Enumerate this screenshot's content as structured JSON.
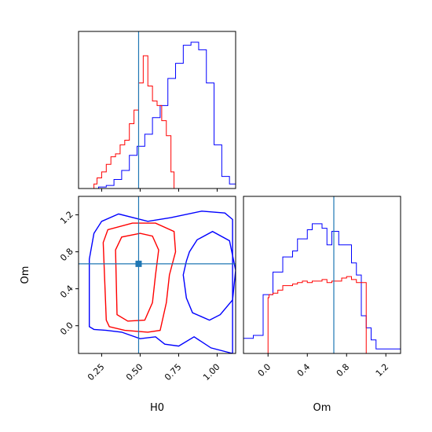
{
  "chart_data": {
    "type": "corner",
    "parameters": [
      "H0",
      "Om"
    ],
    "truth": {
      "H0": 0.49,
      "Om": 0.67
    },
    "colors": {
      "series_blue": "#0000ff",
      "series_red": "#ff0000",
      "truth": "#1f77b4"
    },
    "grid": false,
    "panels": [
      {
        "id": "H0_hist",
        "type": "histogram-step",
        "xlim": [
          0.1,
          1.12
        ],
        "series": [
          {
            "color": "#0000ff",
            "edges": [
              0.1,
              0.13,
              0.18,
              0.23,
              0.28,
              0.33,
              0.38,
              0.43,
              0.48,
              0.53,
              0.58,
              0.63,
              0.68,
              0.73,
              0.78,
              0.83,
              0.88,
              0.93,
              0.98,
              1.03,
              1.08,
              1.12
            ],
            "heights": [
              0,
              0.0,
              0.0,
              0.01,
              0.02,
              0.06,
              0.12,
              0.22,
              0.28,
              0.36,
              0.47,
              0.55,
              0.73,
              0.83,
              0.95,
              0.97,
              0.92,
              0.7,
              0.29,
              0.08,
              0.03
            ]
          },
          {
            "color": "#ff0000",
            "edges": [
              0.2,
              0.22,
              0.25,
              0.28,
              0.31,
              0.34,
              0.37,
              0.4,
              0.43,
              0.46,
              0.49,
              0.52,
              0.55,
              0.58,
              0.61,
              0.64,
              0.67,
              0.7,
              0.72
            ],
            "heights": [
              0.03,
              0.07,
              0.11,
              0.16,
              0.21,
              0.23,
              0.29,
              0.32,
              0.43,
              0.52,
              0.7,
              0.88,
              0.68,
              0.58,
              0.55,
              0.45,
              0.35,
              0.11
            ]
          }
        ]
      },
      {
        "id": "Om_hist",
        "type": "histogram-step",
        "xlim": [
          -0.25,
          1.35
        ],
        "series": [
          {
            "color": "#0000ff",
            "edges": [
              -0.25,
              -0.15,
              -0.05,
              0.05,
              0.15,
              0.25,
              0.3,
              0.4,
              0.45,
              0.55,
              0.6,
              0.65,
              0.72,
              0.78,
              0.85,
              0.9,
              0.95,
              1.0,
              1.05,
              1.1,
              1.15,
              1.35
            ],
            "heights": [
              0.1,
              0.12,
              0.39,
              0.54,
              0.64,
              0.68,
              0.76,
              0.82,
              0.86,
              0.83,
              0.72,
              0.81,
              0.72,
              0.72,
              0.6,
              0.52,
              0.25,
              0.17,
              0.09,
              0.03,
              0.03
            ]
          },
          {
            "color": "#ff0000",
            "edges": [
              0.0,
              0.01,
              0.05,
              0.1,
              0.15,
              0.2,
              0.25,
              0.3,
              0.35,
              0.4,
              0.45,
              0.5,
              0.55,
              0.6,
              0.65,
              0.7,
              0.75,
              0.8,
              0.85,
              0.9,
              0.95,
              1.0
            ],
            "heights": [
              0.37,
              0.39,
              0.4,
              0.42,
              0.45,
              0.45,
              0.46,
              0.47,
              0.48,
              0.47,
              0.48,
              0.48,
              0.49,
              0.47,
              0.48,
              0.48,
              0.5,
              0.51,
              0.49,
              0.47,
              0.47
            ]
          }
        ]
      },
      {
        "id": "H0_Om_2d",
        "type": "contour",
        "xlabel": "H0",
        "ylabel": "Om",
        "xlim": [
          0.1,
          1.12
        ],
        "ylim": [
          -0.3,
          1.4
        ],
        "xticks": [
          "0.25",
          "0.50",
          "0.75",
          "1.00"
        ],
        "xtick_values": [
          0.25,
          0.5,
          0.75,
          1.0
        ],
        "yticks": [
          "0.0",
          "0.4",
          "0.8",
          "1.2"
        ],
        "ytick_values": [
          0.0,
          0.4,
          0.8,
          1.2
        ],
        "contours": [
          {
            "color": "#0000ff",
            "level": "outer",
            "points": [
              [
                0.17,
                -0.01
              ],
              [
                0.17,
                0.72
              ],
              [
                0.2,
                1.0
              ],
              [
                0.25,
                1.13
              ],
              [
                0.36,
                1.21
              ],
              [
                0.55,
                1.13
              ],
              [
                0.7,
                1.17
              ],
              [
                0.9,
                1.24
              ],
              [
                1.05,
                1.22
              ],
              [
                1.1,
                1.15
              ],
              [
                1.1,
                -0.3
              ],
              [
                0.96,
                -0.24
              ],
              [
                0.85,
                -0.12
              ],
              [
                0.75,
                -0.22
              ],
              [
                0.66,
                -0.2
              ],
              [
                0.6,
                -0.12
              ],
              [
                0.5,
                -0.14
              ],
              [
                0.38,
                -0.07
              ],
              [
                0.28,
                -0.05
              ],
              [
                0.2,
                -0.04
              ],
              [
                0.17,
                -0.01
              ]
            ]
          },
          {
            "color": "#0000ff",
            "level": "inner",
            "points": [
              [
                0.8,
                0.7
              ],
              [
                0.78,
                0.55
              ],
              [
                0.8,
                0.3
              ],
              [
                0.84,
                0.14
              ],
              [
                0.95,
                0.06
              ],
              [
                1.02,
                0.12
              ],
              [
                1.1,
                0.28
              ],
              [
                1.12,
                0.6
              ],
              [
                1.08,
                0.92
              ],
              [
                0.97,
                1.02
              ],
              [
                0.87,
                0.93
              ],
              [
                0.82,
                0.8
              ],
              [
                0.8,
                0.7
              ]
            ]
          },
          {
            "color": "#ff0000",
            "level": "outer",
            "points": [
              [
                0.28,
                0.06
              ],
              [
                0.26,
                0.9
              ],
              [
                0.29,
                1.04
              ],
              [
                0.45,
                1.11
              ],
              [
                0.6,
                1.11
              ],
              [
                0.72,
                1.02
              ],
              [
                0.73,
                0.8
              ],
              [
                0.69,
                0.55
              ],
              [
                0.67,
                0.25
              ],
              [
                0.63,
                -0.05
              ],
              [
                0.55,
                -0.07
              ],
              [
                0.4,
                -0.05
              ],
              [
                0.3,
                -0.01
              ],
              [
                0.28,
                0.06
              ]
            ]
          },
          {
            "color": "#ff0000",
            "level": "inner",
            "points": [
              [
                0.35,
                0.12
              ],
              [
                0.34,
                0.82
              ],
              [
                0.38,
                0.96
              ],
              [
                0.5,
                1.0
              ],
              [
                0.58,
                0.97
              ],
              [
                0.62,
                0.82
              ],
              [
                0.6,
                0.55
              ],
              [
                0.58,
                0.25
              ],
              [
                0.53,
                0.06
              ],
              [
                0.42,
                0.05
              ],
              [
                0.35,
                0.12
              ]
            ]
          }
        ]
      }
    ],
    "bottom_labels": {
      "left": "H0",
      "right": "Om"
    },
    "om_hist_xticks": [
      "0.0",
      "0.4",
      "0.8",
      "1.2"
    ],
    "om_hist_xtick_values": [
      0.0,
      0.4,
      0.8,
      1.2
    ]
  }
}
